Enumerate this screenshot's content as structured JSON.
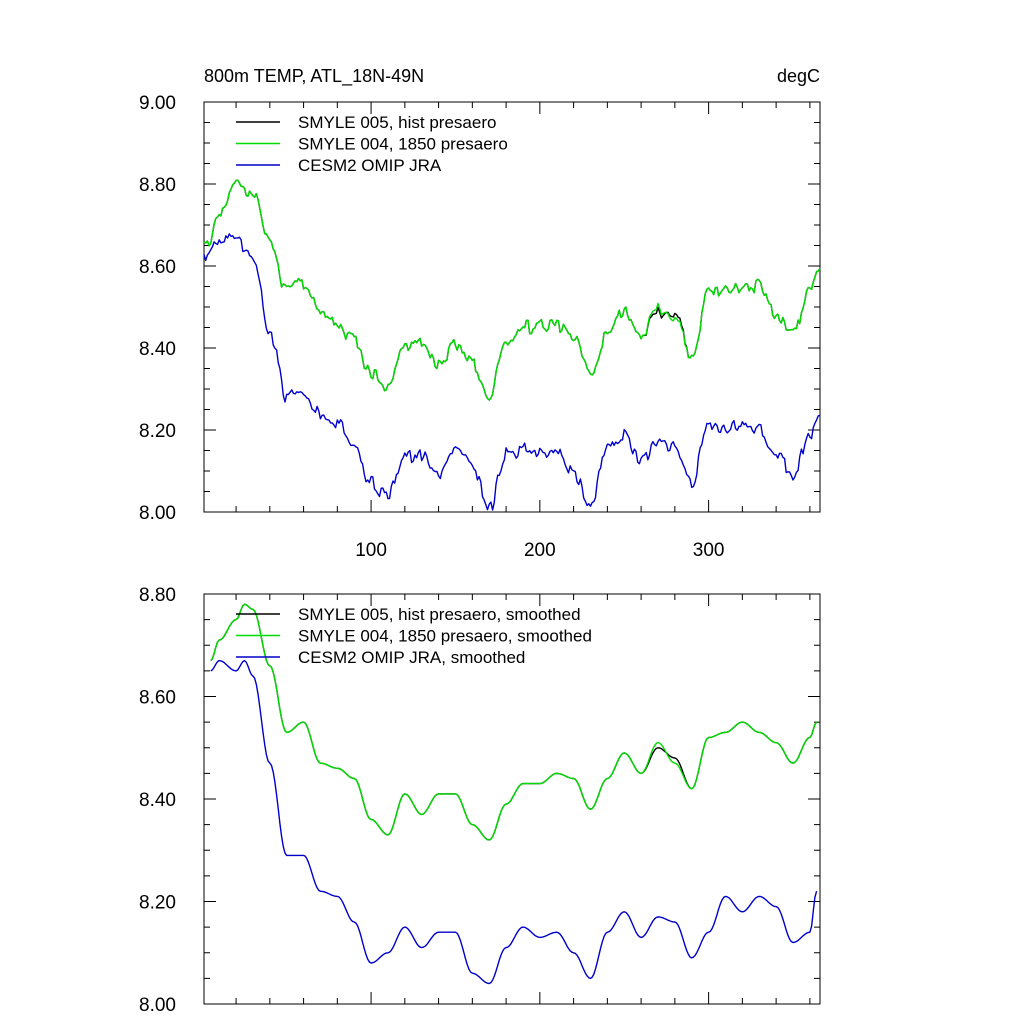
{
  "chart_data": [
    {
      "type": "line",
      "title": "800m TEMP, ATL_18N-49N",
      "units": "degC",
      "xlim": [
        1,
        366
      ],
      "ylim": [
        8.0,
        9.0
      ],
      "yticks": [
        "9.00",
        "8.80",
        "8.60",
        "8.40",
        "8.20",
        "8.00"
      ],
      "xticks": [
        "100",
        "200",
        "300"
      ],
      "grid": false,
      "legend_position": "top-left",
      "x": [
        1,
        10,
        20,
        30,
        40,
        50,
        60,
        70,
        80,
        90,
        100,
        110,
        120,
        130,
        140,
        150,
        160,
        170,
        180,
        190,
        200,
        210,
        220,
        230,
        240,
        250,
        260,
        270,
        280,
        290,
        300,
        310,
        320,
        330,
        340,
        350,
        360,
        366
      ],
      "series": [
        {
          "name": "SMYLE 005, hist presaero",
          "color": "#000000",
          "values": [
            8.64,
            8.72,
            8.8,
            8.77,
            8.66,
            8.54,
            8.56,
            8.49,
            8.45,
            8.42,
            8.34,
            8.3,
            8.4,
            8.42,
            8.36,
            8.41,
            8.36,
            8.29,
            8.42,
            8.45,
            8.45,
            8.46,
            8.43,
            8.34,
            8.44,
            8.49,
            8.43,
            8.49,
            8.48,
            8.38,
            8.53,
            8.54,
            8.55,
            8.55,
            8.48,
            8.44,
            8.54,
            8.59
          ]
        },
        {
          "name": "SMYLE 004, 1850 presaero",
          "color": "#00dd00",
          "values": [
            8.64,
            8.72,
            8.8,
            8.77,
            8.66,
            8.54,
            8.56,
            8.49,
            8.45,
            8.42,
            8.34,
            8.3,
            8.4,
            8.42,
            8.36,
            8.41,
            8.36,
            8.29,
            8.42,
            8.45,
            8.45,
            8.46,
            8.43,
            8.34,
            8.44,
            8.49,
            8.43,
            8.5,
            8.47,
            8.38,
            8.53,
            8.54,
            8.55,
            8.55,
            8.48,
            8.44,
            8.54,
            8.59
          ]
        },
        {
          "name": "CESM2 OMIP JRA",
          "color": "#0000cc",
          "values": [
            8.63,
            8.67,
            8.66,
            8.62,
            8.44,
            8.28,
            8.29,
            8.24,
            8.22,
            8.17,
            8.07,
            8.04,
            8.14,
            8.14,
            8.09,
            8.15,
            8.12,
            8.01,
            8.14,
            8.15,
            8.14,
            8.14,
            8.09,
            8.02,
            8.15,
            8.19,
            8.12,
            8.18,
            8.16,
            8.07,
            8.22,
            8.2,
            8.21,
            8.21,
            8.14,
            8.09,
            8.18,
            8.25
          ]
        }
      ]
    },
    {
      "type": "line",
      "xlim": [
        1,
        366
      ],
      "ylim": [
        8.0,
        8.8
      ],
      "yticks": [
        "8.80",
        "8.60",
        "8.40",
        "8.20",
        "8.00"
      ],
      "grid": false,
      "legend_position": "top-left",
      "x": [
        5,
        10,
        20,
        25,
        30,
        40,
        50,
        60,
        70,
        80,
        90,
        100,
        110,
        120,
        130,
        140,
        150,
        160,
        170,
        180,
        190,
        200,
        210,
        220,
        230,
        240,
        250,
        260,
        270,
        280,
        290,
        300,
        310,
        320,
        330,
        340,
        350,
        360,
        364
      ],
      "series": [
        {
          "name": "SMYLE 005, hist presaero, smoothed",
          "color": "#000000",
          "values": [
            8.67,
            8.71,
            8.75,
            8.78,
            8.77,
            8.66,
            8.53,
            8.55,
            8.47,
            8.46,
            8.44,
            8.36,
            8.33,
            8.41,
            8.37,
            8.41,
            8.41,
            8.35,
            8.32,
            8.39,
            8.43,
            8.43,
            8.45,
            8.44,
            8.38,
            8.44,
            8.49,
            8.45,
            8.5,
            8.48,
            8.42,
            8.52,
            8.53,
            8.55,
            8.53,
            8.51,
            8.47,
            8.52,
            8.55
          ]
        },
        {
          "name": "SMYLE 004, 1850 presaero, smoothed",
          "color": "#00dd00",
          "values": [
            8.67,
            8.71,
            8.75,
            8.78,
            8.77,
            8.66,
            8.53,
            8.55,
            8.47,
            8.46,
            8.44,
            8.36,
            8.33,
            8.41,
            8.37,
            8.41,
            8.41,
            8.35,
            8.32,
            8.39,
            8.43,
            8.43,
            8.45,
            8.44,
            8.38,
            8.44,
            8.49,
            8.45,
            8.51,
            8.47,
            8.42,
            8.52,
            8.53,
            8.55,
            8.53,
            8.51,
            8.47,
            8.52,
            8.55
          ]
        },
        {
          "name": "CESM2 OMIP JRA, smoothed",
          "color": "#0000cc",
          "values": [
            8.65,
            8.67,
            8.65,
            8.67,
            8.64,
            8.47,
            8.29,
            8.29,
            8.22,
            8.21,
            8.16,
            8.08,
            8.1,
            8.15,
            8.11,
            8.14,
            8.14,
            8.06,
            8.04,
            8.11,
            8.15,
            8.13,
            8.14,
            8.1,
            8.05,
            8.14,
            8.18,
            8.13,
            8.17,
            8.16,
            8.09,
            8.14,
            8.21,
            8.18,
            8.21,
            8.19,
            8.12,
            8.14,
            8.22
          ]
        }
      ]
    }
  ]
}
